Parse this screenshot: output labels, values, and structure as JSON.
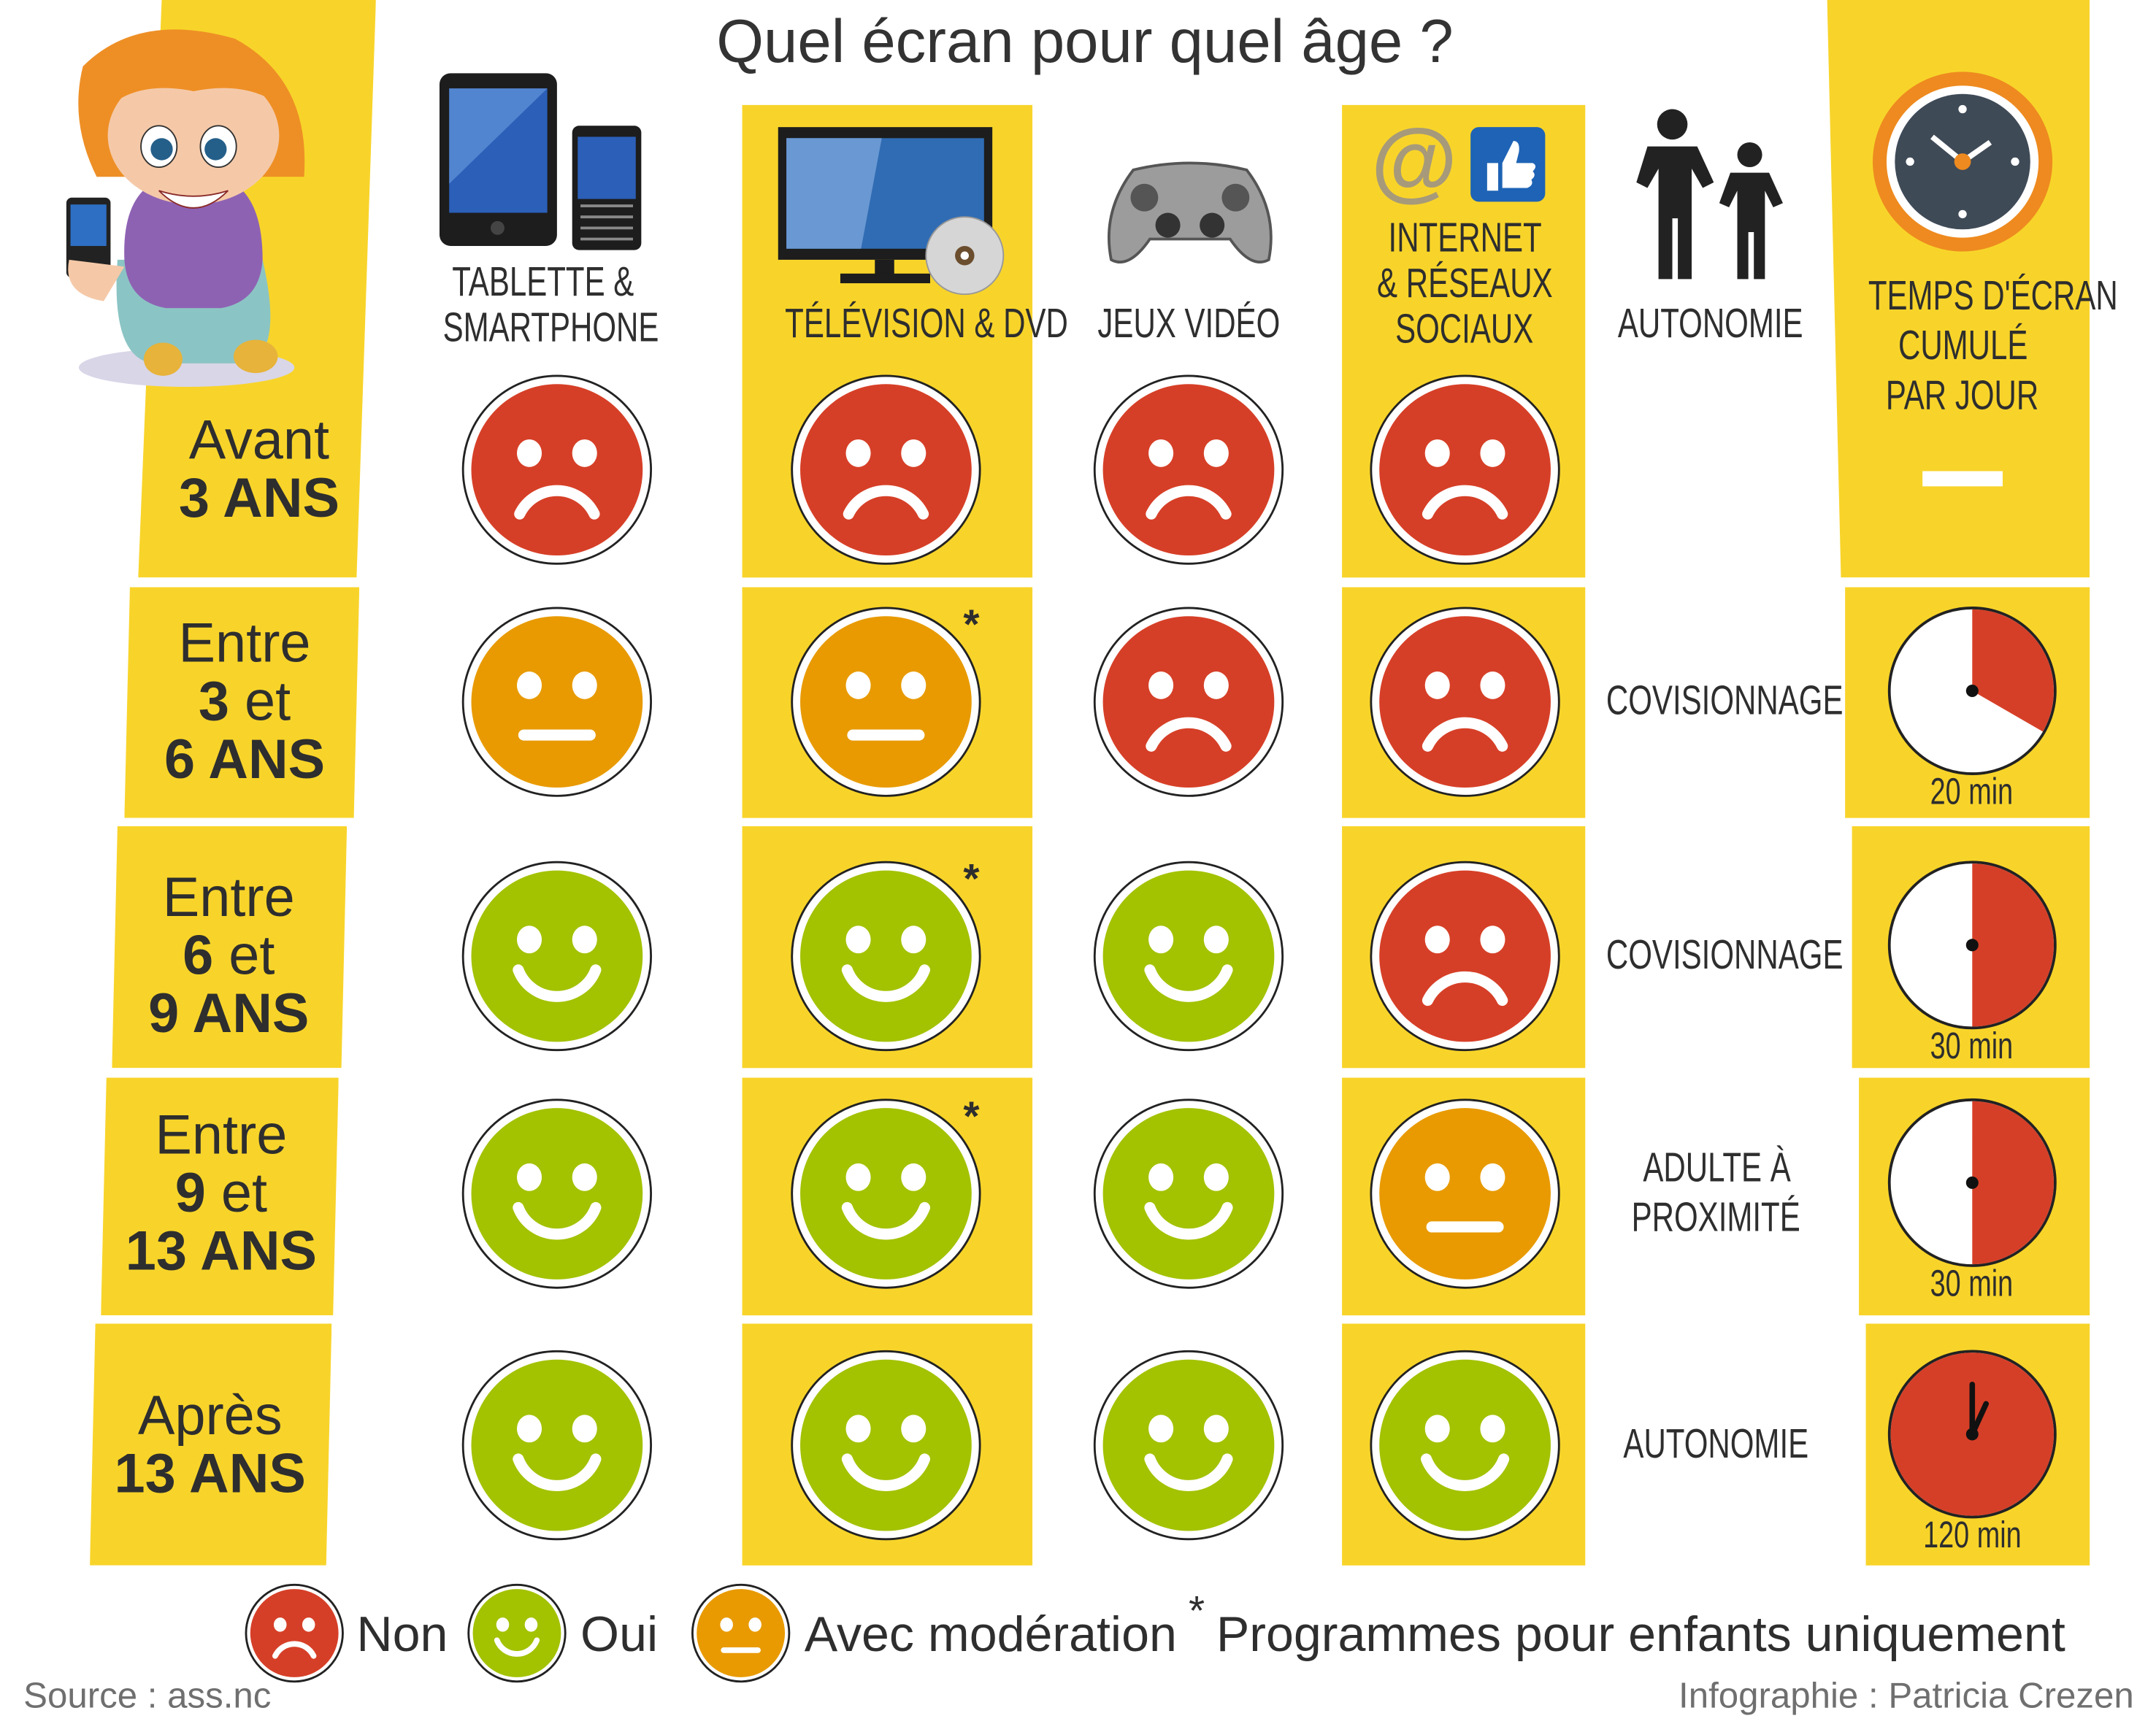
{
  "title": "Quel écran pour quel âge ?",
  "columns": {
    "tablet": [
      "TABLETTE &",
      "SMARTPHONE"
    ],
    "tv": [
      "TÉLÉVISION & DVD"
    ],
    "games": [
      "JEUX VIDÉO"
    ],
    "internet": [
      "INTERNET",
      "& RÉSEAUX",
      "SOCIAUX"
    ],
    "autonomy": [
      "AUTONOMIE"
    ],
    "screen_time": [
      "TEMPS D'ÉCRAN",
      "CUMULÉ",
      "PAR JOUR"
    ]
  },
  "first_row_time": "—",
  "rows": [
    {
      "age": [
        [
          {
            "t": "Avant",
            "b": false
          }
        ],
        [
          {
            "t": "3 ANS",
            "b": true
          }
        ]
      ],
      "ratings": [
        "non",
        "non",
        "non",
        "non"
      ],
      "tv_asterisk": false,
      "autonomy": [],
      "minutes": null,
      "time_label": ""
    },
    {
      "age": [
        [
          {
            "t": "Entre",
            "b": false
          }
        ],
        [
          {
            "t": "3",
            "b": true
          },
          {
            "t": " et",
            "b": false
          }
        ],
        [
          {
            "t": "6 ANS",
            "b": true
          }
        ]
      ],
      "ratings": [
        "moderation",
        "moderation",
        "non",
        "non"
      ],
      "tv_asterisk": true,
      "autonomy": [
        "COVISIONNAGE"
      ],
      "minutes": 20,
      "time_label": "20 min"
    },
    {
      "age": [
        [
          {
            "t": "Entre",
            "b": false
          }
        ],
        [
          {
            "t": "6",
            "b": true
          },
          {
            "t": " et",
            "b": false
          }
        ],
        [
          {
            "t": "9 ANS",
            "b": true
          }
        ]
      ],
      "ratings": [
        "oui",
        "oui",
        "oui",
        "non"
      ],
      "tv_asterisk": true,
      "autonomy": [
        "COVISIONNAGE"
      ],
      "minutes": 30,
      "time_label": "30 min"
    },
    {
      "age": [
        [
          {
            "t": "Entre",
            "b": false
          }
        ],
        [
          {
            "t": "9",
            "b": true
          },
          {
            "t": " et",
            "b": false
          }
        ],
        [
          {
            "t": "13 ANS",
            "b": true
          }
        ]
      ],
      "ratings": [
        "oui",
        "oui",
        "oui",
        "moderation"
      ],
      "tv_asterisk": true,
      "autonomy": [
        "ADULTE À",
        "PROXIMITÉ"
      ],
      "minutes": 30,
      "time_label": "30 min"
    },
    {
      "age": [
        [
          {
            "t": "Après",
            "b": false
          }
        ],
        [
          {
            "t": "13 ANS",
            "b": true
          }
        ]
      ],
      "ratings": [
        "oui",
        "oui",
        "oui",
        "oui"
      ],
      "tv_asterisk": false,
      "autonomy": [
        "AUTONOMIE"
      ],
      "minutes": 120,
      "time_label": "120 min"
    }
  ],
  "legend": {
    "non": "Non",
    "oui": "Oui",
    "moderation": "Avec modération",
    "asterisk": "*",
    "note": "Programmes pour enfants uniquement"
  },
  "footer": {
    "source": "Source : ass.nc",
    "credit": "Infographie : Patricia Crezen"
  },
  "colors": {
    "yellow": "#f8d42a",
    "non": "#d63f27",
    "oui": "#a3c200",
    "moderation": "#e89a00"
  }
}
